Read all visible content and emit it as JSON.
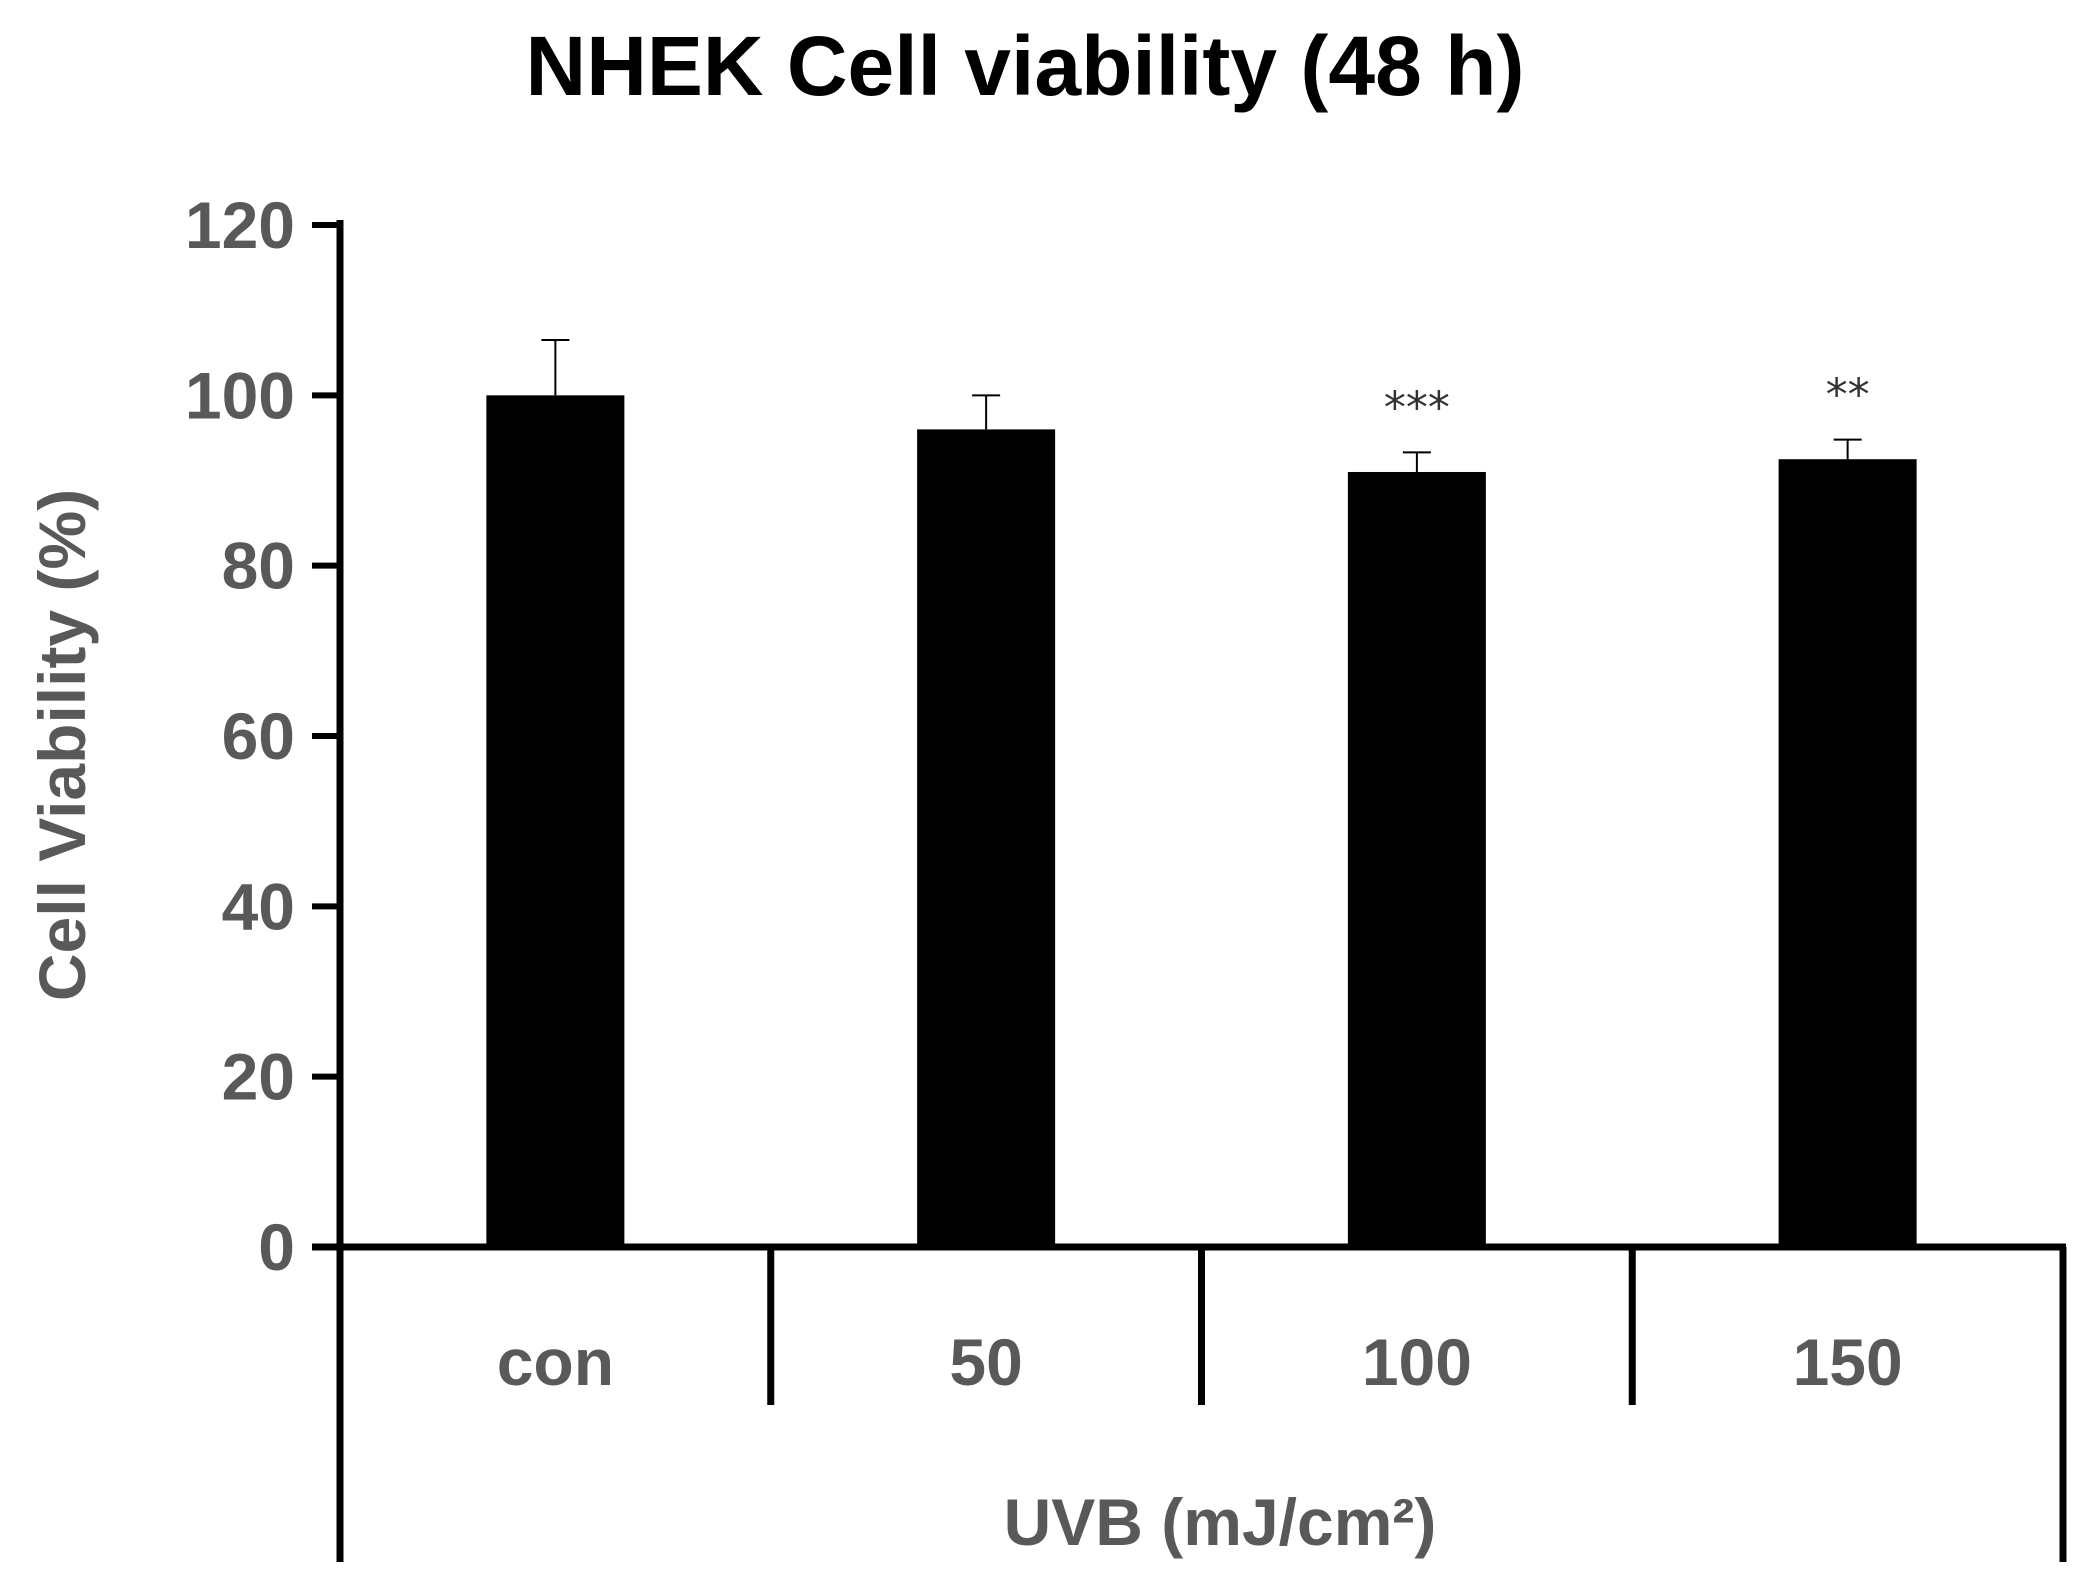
{
  "chart_data": {
    "type": "bar",
    "title": "NHEK Cell viability (48 h)",
    "xlabel": "UVB (mJ/cm²)",
    "ylabel": "Cell Viability (%)",
    "ylim": [
      0,
      120
    ],
    "yticks": [
      0,
      20,
      40,
      60,
      80,
      100,
      120
    ],
    "yticklabels": [
      "0",
      "20",
      "40",
      "60",
      "80",
      "100",
      "120"
    ],
    "categories": [
      "con",
      "50",
      "100",
      "150"
    ],
    "values": [
      100,
      96,
      91,
      92.5
    ],
    "errors": [
      6.5,
      4,
      2.3,
      2.3
    ],
    "significance": [
      "",
      "",
      "***",
      "**"
    ],
    "bar_color": "#000000",
    "axis_color": "#000000",
    "grid": false
  }
}
